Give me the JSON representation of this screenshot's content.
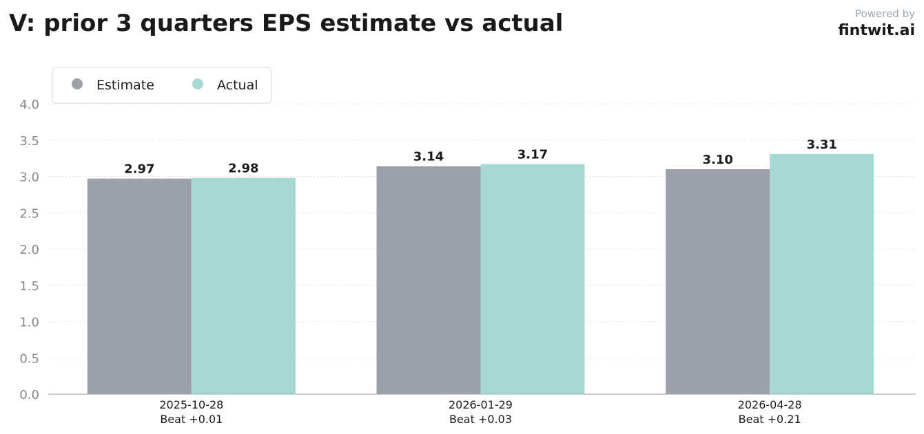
{
  "header": {
    "title": "V: prior 3 quarters EPS estimate vs actual",
    "powered_by": "Powered by",
    "brand": "fintwit.ai"
  },
  "colors": {
    "estimate": "#9ca0a8",
    "actual": "#a8d8d4",
    "grid": "#e3e3e3",
    "axis": "#bbbbbb",
    "tick_text": "#888888",
    "label_text": "#1a1a1a"
  },
  "chart_data": {
    "type": "bar",
    "categories": [
      "2025-10-28",
      "2026-01-29",
      "2026-04-28"
    ],
    "category_sublabels": [
      "Beat +0.01",
      "Beat +0.03",
      "Beat +0.21"
    ],
    "series": [
      {
        "name": "Estimate",
        "values": [
          2.97,
          3.14,
          3.1
        ],
        "labels": [
          "2.97",
          "3.14",
          "3.10"
        ]
      },
      {
        "name": "Actual",
        "values": [
          2.98,
          3.17,
          3.31
        ],
        "labels": [
          "2.98",
          "3.17",
          "3.31"
        ]
      }
    ],
    "ylim": [
      0,
      4
    ],
    "yticks": [
      "0.0",
      "0.5",
      "1.0",
      "1.5",
      "2.0",
      "2.5",
      "3.0",
      "3.5",
      "4.0"
    ],
    "legend": "top-left",
    "grid": true
  }
}
